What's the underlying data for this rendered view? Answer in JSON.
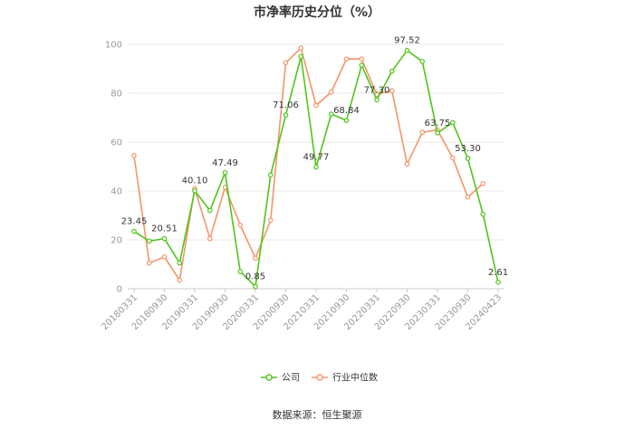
{
  "chart_data": {
    "type": "line",
    "title": "市净率历史分位（%）",
    "ylim": [
      0,
      100
    ],
    "yticks": [
      0,
      20,
      40,
      60,
      80,
      100
    ],
    "grid": true,
    "legend_position": "bottom",
    "x_tick_labels": [
      "20180331",
      "20180930",
      "20190331",
      "20190930",
      "20200331",
      "20200930",
      "20210331",
      "20210930",
      "20220331",
      "20220930",
      "20230331",
      "20230930",
      "20240423"
    ],
    "x": [
      "20180331",
      "20180630",
      "20180930",
      "20181231",
      "20190331",
      "20190630",
      "20190930",
      "20191231",
      "20200331",
      "20200630",
      "20200930",
      "20201231",
      "20210331",
      "20210630",
      "20210930",
      "20211231",
      "20220331",
      "20220630",
      "20220930",
      "20221231",
      "20230331",
      "20230630",
      "20230930",
      "20231231",
      "20240423"
    ],
    "series": [
      {
        "name": "公司",
        "color": "#52c41a",
        "values": [
          23.45,
          19.5,
          20.51,
          10.5,
          40.1,
          32.0,
          47.49,
          7.0,
          0.85,
          46.5,
          71.06,
          95.0,
          49.77,
          71.5,
          68.84,
          91.5,
          77.3,
          89.0,
          97.52,
          93.0,
          63.75,
          68.0,
          53.3,
          30.5,
          2.61
        ]
      },
      {
        "name": "行业中位数",
        "color": "#f4956a",
        "values": [
          54.5,
          10.5,
          13.0,
          3.5,
          41.0,
          20.5,
          41.5,
          26.0,
          12.5,
          28.0,
          92.5,
          98.5,
          75.0,
          80.5,
          94.0,
          94.0,
          79.5,
          81.0,
          51.0,
          64.0,
          65.0,
          53.5,
          37.5,
          43.0,
          null
        ]
      }
    ],
    "data_labels": [
      {
        "index": 0,
        "text": "23.45"
      },
      {
        "index": 2,
        "text": "20.51"
      },
      {
        "index": 4,
        "text": "40.10"
      },
      {
        "index": 6,
        "text": "47.49"
      },
      {
        "index": 8,
        "text": "0.85"
      },
      {
        "index": 10,
        "text": "71.06"
      },
      {
        "index": 12,
        "text": "49.77"
      },
      {
        "index": 14,
        "text": "68.84"
      },
      {
        "index": 16,
        "text": "77.30"
      },
      {
        "index": 18,
        "text": "97.52"
      },
      {
        "index": 20,
        "text": "63.75"
      },
      {
        "index": 22,
        "text": "53.30"
      },
      {
        "index": 24,
        "text": "2.61"
      }
    ]
  },
  "source_text": "数据来源：恒生聚源"
}
